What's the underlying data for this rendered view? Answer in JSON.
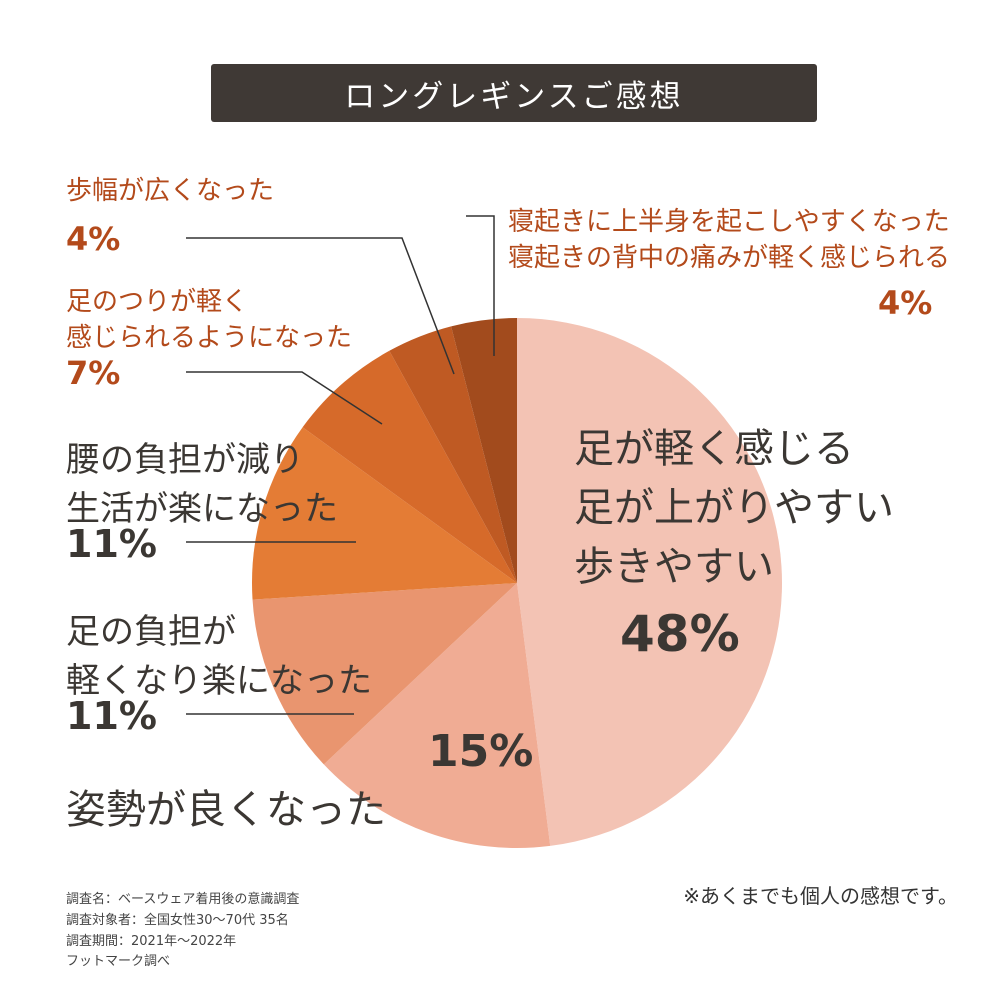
{
  "title": "ロングレギンスご感想",
  "chart_data": {
    "type": "pie",
    "start": "12 o'clock",
    "direction": "clockwise",
    "slices": [
      {
        "lines": [
          "足が軽く感じる",
          "足が上がりやすい",
          "歩きやすい"
        ],
        "value": 48,
        "label": "48%",
        "color": "#f3c3b4"
      },
      {
        "lines": [
          "姿勢が良くなった"
        ],
        "value": 15,
        "label": "15%",
        "color": "#f0ac94"
      },
      {
        "lines": [
          "足の負担が",
          "軽くなり楽になった"
        ],
        "value": 11,
        "label": "11%",
        "color": "#e9956f"
      },
      {
        "lines": [
          "腰の負担が減り",
          "生活が楽になった"
        ],
        "value": 11,
        "label": "11%",
        "color": "#e47c35"
      },
      {
        "lines": [
          "足のつりが軽く",
          "感じられるようになった"
        ],
        "value": 7,
        "label": "7%",
        "color": "#d66a2a"
      },
      {
        "lines": [
          "歩幅が広くなった"
        ],
        "value": 4,
        "label": "4%",
        "color": "#bf5a23"
      },
      {
        "lines": [
          "寝起きに上半身を起こしやすくなった",
          "寝起きの背中の痛みが軽く感じられる"
        ],
        "value": 4,
        "label": "4%",
        "color": "#a24b1d"
      }
    ]
  },
  "footer": {
    "lines": [
      "調査名：ベースウェア着用後の意識調査",
      "調査対象者：全国女性30〜70代 35名",
      "調査期間：2021年〜2022年",
      "フットマーク調べ"
    ]
  },
  "note": "※あくまでも個人の感想です。"
}
